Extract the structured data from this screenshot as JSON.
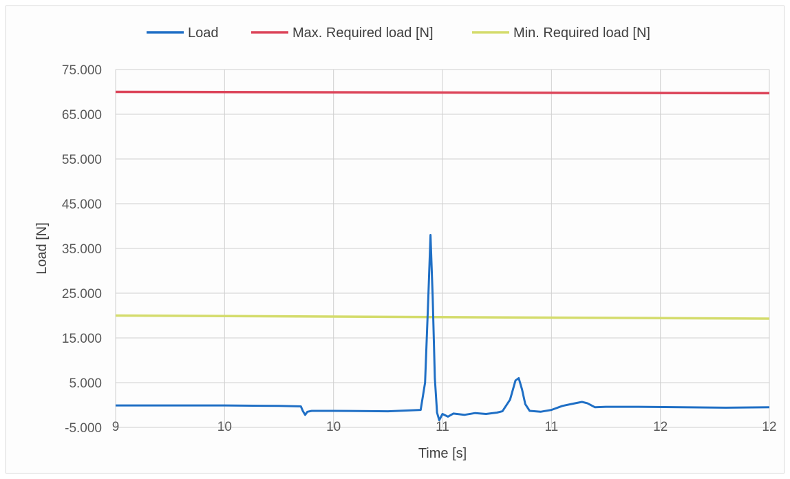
{
  "chart_data": {
    "type": "line",
    "title": "",
    "xlabel": "Time [s]",
    "ylabel": "Load [N]",
    "xlim": [
      0,
      6
    ],
    "ylim": [
      -5000,
      75000
    ],
    "grid": true,
    "legend_position": "top",
    "x_tick_labels": [
      "9",
      "10",
      "10",
      "11",
      "11",
      "12",
      "12"
    ],
    "y_tick_labels": [
      "75.000",
      "65.000",
      "55.000",
      "45.000",
      "35.000",
      "25.000",
      "15.000",
      "5.000",
      "-5.000"
    ],
    "y_ticks": [
      75000,
      65000,
      55000,
      45000,
      35000,
      25000,
      15000,
      5000,
      -5000
    ],
    "series": [
      {
        "name": "Load",
        "color": "#1f6fc5",
        "x": [
          0,
          0.5,
          1.0,
          1.5,
          1.7,
          1.72,
          1.74,
          1.76,
          1.8,
          2.0,
          2.5,
          2.8,
          2.84,
          2.87,
          2.89,
          2.91,
          2.93,
          2.95,
          2.97,
          3.0,
          3.05,
          3.1,
          3.2,
          3.3,
          3.4,
          3.5,
          3.55,
          3.62,
          3.67,
          3.7,
          3.73,
          3.76,
          3.8,
          3.9,
          4.0,
          4.1,
          4.2,
          4.28,
          4.33,
          4.4,
          4.5,
          4.8,
          5.2,
          5.6,
          6.0
        ],
        "values": [
          -100,
          -100,
          -100,
          -200,
          -300,
          -1400,
          -2200,
          -1500,
          -1300,
          -1300,
          -1400,
          -1100,
          5000,
          24000,
          38000,
          24000,
          6000,
          -1700,
          -3400,
          -2000,
          -2600,
          -1900,
          -2200,
          -1800,
          -2000,
          -1700,
          -1400,
          1200,
          5500,
          6000,
          3500,
          200,
          -1300,
          -1500,
          -1100,
          -200,
          300,
          700,
          400,
          -500,
          -400,
          -400,
          -500,
          -600,
          -500
        ]
      },
      {
        "name": "Max. Required load [N]",
        "color": "#dc4459",
        "x": [
          0,
          6
        ],
        "values": [
          70000,
          69700
        ]
      },
      {
        "name": "Min. Required load [N]",
        "color": "#d4dc6c",
        "x": [
          0,
          6
        ],
        "values": [
          20000,
          19300
        ]
      }
    ]
  }
}
